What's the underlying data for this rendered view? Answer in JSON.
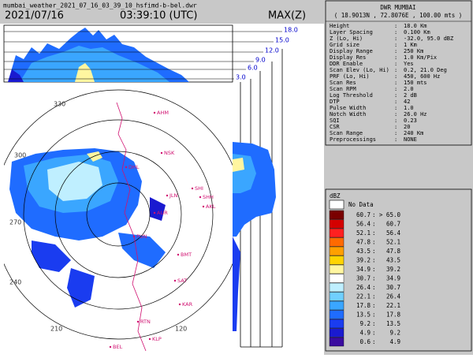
{
  "header": {
    "filename": "mumbai_weather_2021_07_16_03_39_10_hsfimd-b-bel.dwr",
    "date": "2021/07/16",
    "time": "03:39:10 (UTC)",
    "product": "MAX(Z)"
  },
  "heights": [
    "3.0",
    "6.0",
    "9.0",
    "12.0",
    "15.0",
    "18.0"
  ],
  "azimuths": [
    "330",
    "300",
    "270",
    "240",
    "210",
    "120"
  ],
  "stations": [
    "AHM",
    "NSK",
    "DHL",
    "SHI",
    "SHH",
    "JLN",
    "AKL",
    "AUR",
    "PUN",
    "BMT",
    "SAT",
    "KAR",
    "RTN",
    "KLP",
    "BEL"
  ],
  "info": {
    "title": "DWR MUMBAI",
    "location": "( 18.9013N , 72.8076E , 100.00 mts )",
    "rows": [
      [
        "Height",
        "18.0 Km"
      ],
      [
        "Layer Spacing",
        "0.100 Km"
      ],
      [
        "Z (Lo, Hi)",
        "-32.0, 95.0 dBZ"
      ],
      [
        "Grid size",
        "1 Km"
      ],
      [
        "Display Range",
        "250 Km"
      ],
      [
        "Display Res",
        "1.0 Km/Pix"
      ],
      [
        "DDR Enable",
        "Yes"
      ],
      [
        "Scan Elev (Lo, Hi)",
        "0.2, 21.0 Deg"
      ],
      [
        "PRF (Lo, Hi)",
        "450, 600 Hz"
      ],
      [
        "Scan Res",
        "150 mts"
      ],
      [
        "Scan RPM",
        "2.0"
      ],
      [
        "Log Threshold",
        "2 dB"
      ],
      [
        "DTP",
        "42"
      ],
      [
        "Pulse Width",
        "1.0"
      ],
      [
        "Notch Width",
        "26.0 Hz"
      ],
      [
        "SQI",
        "0.23"
      ],
      [
        "CSR",
        "20"
      ],
      [
        "Scan Range",
        "240 Km"
      ],
      [
        "Preprocessings",
        "NONE"
      ]
    ]
  },
  "legend": {
    "title": "dBZ",
    "no_data": "No Data",
    "entries": [
      {
        "color": "#7a0000",
        "from": "60.7",
        "to": "> 65.0"
      },
      {
        "color": "#d40000",
        "from": "56.4",
        "to": "60.7"
      },
      {
        "color": "#ff2020",
        "from": "52.1",
        "to": "56.4"
      },
      {
        "color": "#ff6a00",
        "from": "47.8",
        "to": "52.1"
      },
      {
        "color": "#ffa000",
        "from": "43.5",
        "to": "47.8"
      },
      {
        "color": "#ffd400",
        "from": "39.2",
        "to": "43.5"
      },
      {
        "color": "#fff6a0",
        "from": "34.9",
        "to": "39.2"
      },
      {
        "color": "#ffffff",
        "from": "30.7",
        "to": "34.9"
      },
      {
        "color": "#bfefff",
        "from": "26.4",
        "to": "30.7"
      },
      {
        "color": "#70d0ff",
        "from": "22.1",
        "to": "26.4"
      },
      {
        "color": "#3aa6ff",
        "from": "17.8",
        "to": "22.1"
      },
      {
        "color": "#1f6cff",
        "from": "13.5",
        "to": "17.8"
      },
      {
        "color": "#1a3cf0",
        "from": "9.2",
        "to": "13.5"
      },
      {
        "color": "#1a1ad0",
        "from": "4.9",
        "to": "9.2"
      },
      {
        "color": "#3a0ca0",
        "from": "0.6",
        "to": "4.9"
      }
    ]
  }
}
